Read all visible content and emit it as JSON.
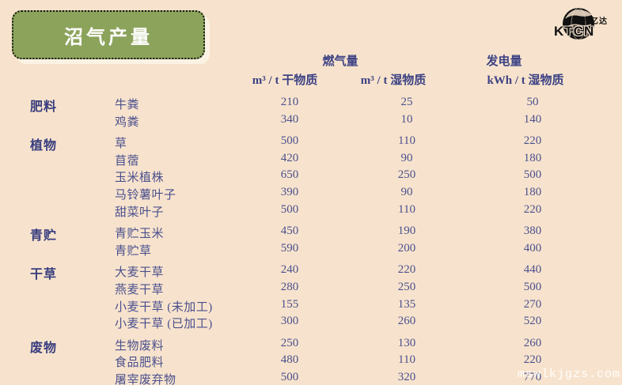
{
  "page": {
    "background": "#f7e3cd",
    "accent_green": "#8ca35c",
    "text_navy": "#3d4284"
  },
  "title": {
    "label": "沼气产量"
  },
  "logo": {
    "brand": "KTCN",
    "brand_cn": "仟亿达"
  },
  "table": {
    "header_groups": [
      {
        "label": "燃气量"
      },
      {
        "label": "发电量"
      }
    ],
    "columns": [
      "m³ / t 干物质",
      "m³ / t 湿物质",
      "kWh / t 湿物质"
    ],
    "groups": [
      {
        "category": "肥料",
        "rows": [
          {
            "label": "牛粪",
            "values": [
              "210",
              "25",
              "50"
            ]
          },
          {
            "label": "鸡粪",
            "values": [
              "340",
              "10",
              "140"
            ]
          }
        ]
      },
      {
        "category": "植物",
        "rows": [
          {
            "label": "草",
            "values": [
              "500",
              "110",
              "220"
            ]
          },
          {
            "label": "苜蓿",
            "values": [
              "420",
              "90",
              "180"
            ]
          },
          {
            "label": "玉米植株",
            "values": [
              "650",
              "250",
              "500"
            ]
          },
          {
            "label": "马铃薯叶子",
            "values": [
              "390",
              "90",
              "180"
            ]
          },
          {
            "label": "甜菜叶子",
            "values": [
              "500",
              "110",
              "220"
            ]
          }
        ]
      },
      {
        "category": "青贮",
        "rows": [
          {
            "label": "青贮玉米",
            "values": [
              "450",
              "190",
              "380"
            ]
          },
          {
            "label": "青贮草",
            "values": [
              "590",
              "200",
              "400"
            ]
          }
        ]
      },
      {
        "category": "干草",
        "rows": [
          {
            "label": "大麦干草",
            "values": [
              "240",
              "220",
              "440"
            ]
          },
          {
            "label": "燕麦干草",
            "values": [
              "280",
              "250",
              "500"
            ]
          },
          {
            "label": "小麦干草 (未加工)",
            "values": [
              "155",
              "135",
              "270"
            ]
          },
          {
            "label": "小麦干草 (已加工)",
            "values": [
              "300",
              "260",
              "520"
            ]
          }
        ]
      },
      {
        "category": "废物",
        "rows": [
          {
            "label": "生物废料",
            "values": [
              "250",
              "130",
              "260"
            ]
          },
          {
            "label": "食品肥料",
            "values": [
              "480",
              "110",
              "220"
            ]
          },
          {
            "label": "屠宰废弃物",
            "values": [
              "500",
              "320",
              "770"
            ]
          }
        ]
      }
    ]
  },
  "watermark": {
    "text": "mswlkjgzs.com"
  }
}
